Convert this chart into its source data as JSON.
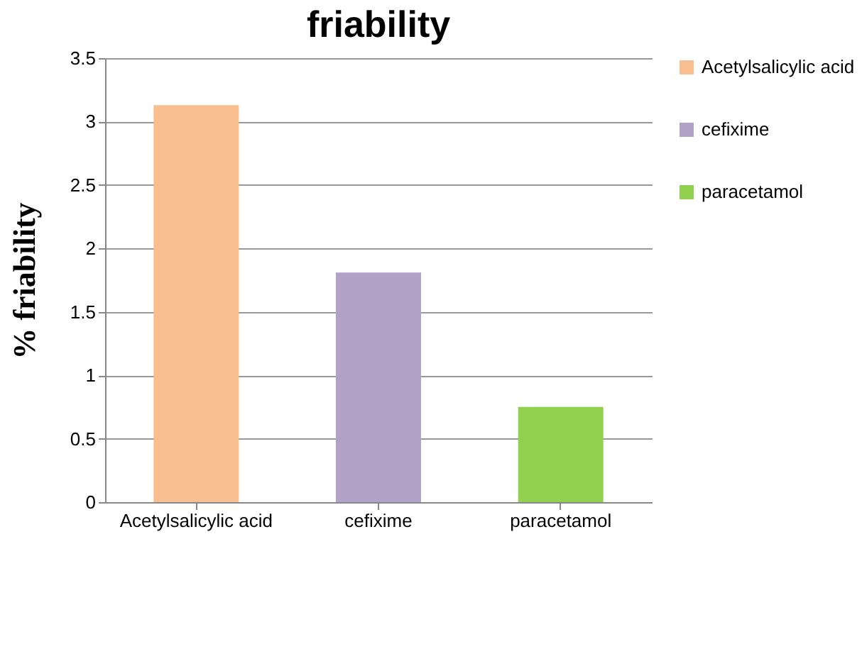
{
  "chart_data": {
    "type": "bar",
    "title": "friability",
    "ylabel": "% friability",
    "categories": [
      "Acetylsalicylic acid",
      "cefixime",
      "paracetamol"
    ],
    "series": [
      {
        "name": "Acetylsalicylic acid",
        "color": "#f9be8f",
        "values": [
          3.13,
          null,
          null
        ]
      },
      {
        "name": "cefixime",
        "color": "#b1a2c8",
        "values": [
          null,
          1.81,
          null
        ]
      },
      {
        "name": "paracetamol",
        "color": "#92d050",
        "values": [
          null,
          null,
          0.75
        ]
      }
    ],
    "ylim": [
      0,
      3.5
    ],
    "yticks": [
      0,
      0.5,
      1,
      1.5,
      2,
      2.5,
      3,
      3.5
    ],
    "grid": "y",
    "legend": "right"
  }
}
